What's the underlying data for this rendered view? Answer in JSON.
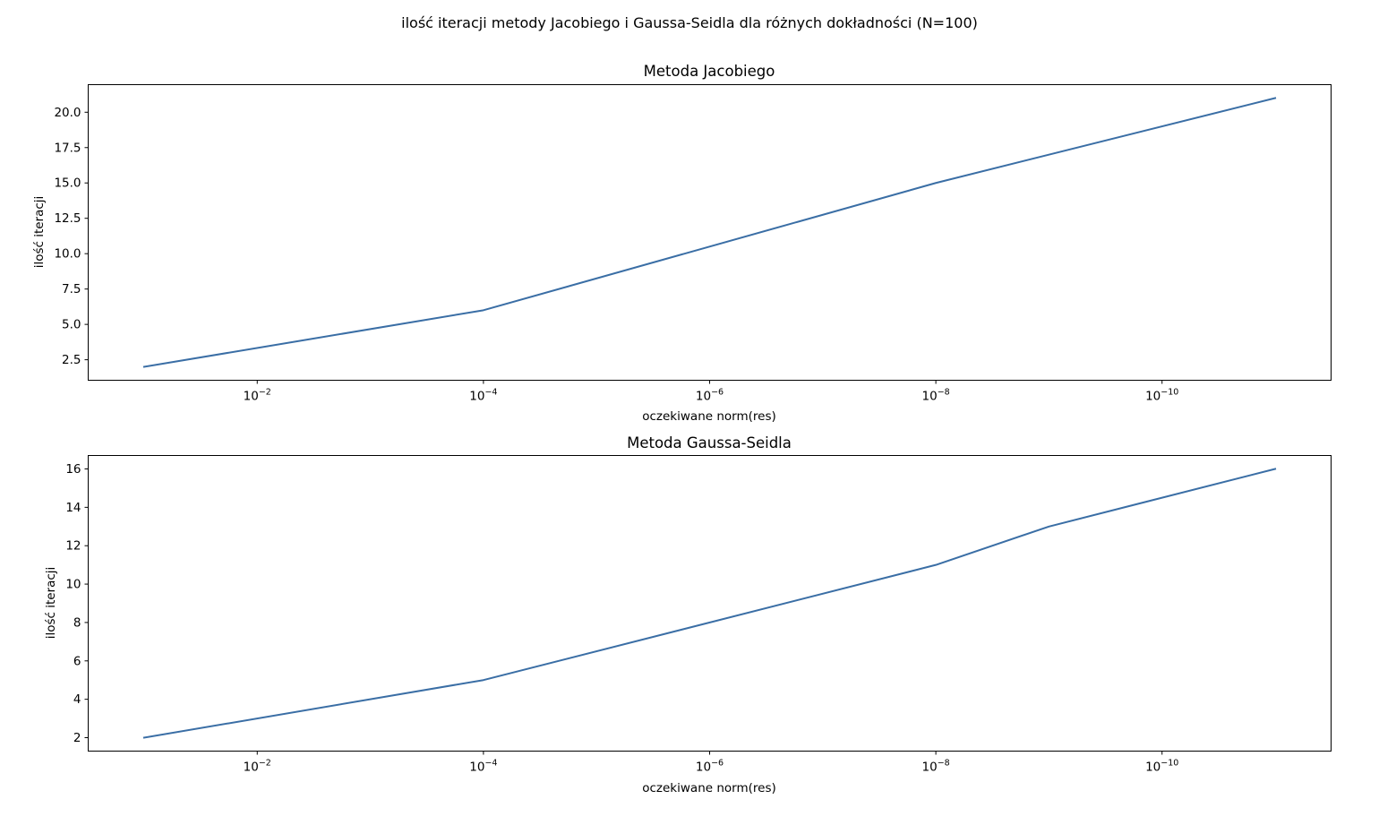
{
  "suptitle": "ilość iteracji metody Jacobiego i Gaussa-Seidla dla różnych dokładności (N=100)",
  "chart_data": [
    {
      "type": "line",
      "title": "Metoda Jacobiego",
      "xlabel": "oczekiwane norm(res)",
      "ylabel": "ilość iteracji",
      "x_scale": "log",
      "x_inverted": true,
      "x_ticks": [
        {
          "base": "10",
          "exp": "−2",
          "value": 0.01
        },
        {
          "base": "10",
          "exp": "−4",
          "value": 0.0001
        },
        {
          "base": "10",
          "exp": "−6",
          "value": 1e-06
        },
        {
          "base": "10",
          "exp": "−8",
          "value": 1e-08
        },
        {
          "base": "10",
          "exp": "−10",
          "value": 1e-10
        }
      ],
      "y_ticks": [
        "2.5",
        "5.0",
        "7.5",
        "10.0",
        "12.5",
        "15.0",
        "17.5",
        "20.0"
      ],
      "ylim": [
        1.05,
        21.95
      ],
      "grid": false,
      "series": [
        {
          "color": "#3a6ea5",
          "x": [
            0.1,
            0.0001,
            1e-08,
            1e-11
          ],
          "y": [
            2,
            6,
            15,
            21
          ]
        }
      ]
    },
    {
      "type": "line",
      "title": "Metoda Gaussa-Seidla",
      "xlabel": "oczekiwane norm(res)",
      "ylabel": "ilość iteracji",
      "x_scale": "log",
      "x_inverted": true,
      "x_ticks": [
        {
          "base": "10",
          "exp": "−2",
          "value": 0.01
        },
        {
          "base": "10",
          "exp": "−4",
          "value": 0.0001
        },
        {
          "base": "10",
          "exp": "−6",
          "value": 1e-06
        },
        {
          "base": "10",
          "exp": "−8",
          "value": 1e-08
        },
        {
          "base": "10",
          "exp": "−10",
          "value": 1e-10
        }
      ],
      "y_ticks": [
        "2",
        "4",
        "6",
        "8",
        "10",
        "12",
        "14",
        "16"
      ],
      "ylim": [
        1.3,
        16.7
      ],
      "grid": false,
      "series": [
        {
          "color": "#3a6ea5",
          "x": [
            0.1,
            0.0001,
            1e-08,
            1e-09,
            1e-11
          ],
          "y": [
            2,
            5,
            11,
            13,
            16
          ]
        }
      ]
    }
  ]
}
